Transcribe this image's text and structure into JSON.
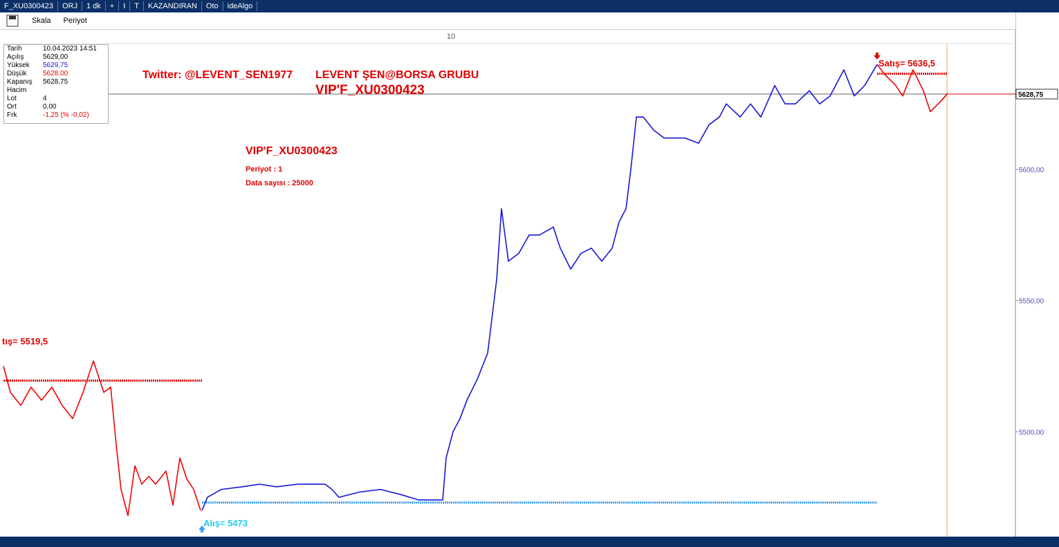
{
  "toolbar": {
    "items": [
      "F_XU0300423",
      "ORJ",
      "1 dk",
      "+",
      "I",
      "T",
      "KAZANDIRAN",
      "Oto",
      "ideAlgo"
    ]
  },
  "menu": {
    "items": [
      "Skala",
      "Periyot"
    ]
  },
  "info_panel": {
    "rows": [
      {
        "label": "Tarih",
        "value": "10.04.2023 14:51"
      },
      {
        "label": "Açılış",
        "value": "5629,00"
      },
      {
        "label": "Yüksek",
        "value": "5629,75",
        "color": "#1a1ad0"
      },
      {
        "label": "Düşük",
        "value": "5628,00",
        "color": "#e00000"
      },
      {
        "label": "Kapanış",
        "value": "5628,75"
      },
      {
        "label": "Hacim"
      },
      {
        "label": "Lot",
        "value": "4"
      },
      {
        "label": "Ort",
        "value": "0,00"
      },
      {
        "label": "Frk",
        "value": "-1,25 (% -0,02)",
        "color": "#e00000"
      }
    ]
  },
  "chart_data": {
    "type": "line",
    "annotations": [
      {
        "text": "Twitter: @LEVENT_SEN1977",
        "color": "#e00000"
      },
      {
        "text": "LEVENT ŞEN@BORSA GRUBU",
        "color": "#e00000"
      },
      {
        "text": "VIP'F_XU0300423",
        "color": "#e00000"
      },
      {
        "text": "VIP'F_XU0300423",
        "color": "#e00000"
      },
      {
        "text": "Periyot : 1",
        "color": "#e00000"
      },
      {
        "text": "Data sayısı : 25000",
        "color": "#e00000"
      }
    ],
    "xlim": [
      5,
      1468
    ],
    "xticks": [
      {
        "value": 647,
        "label": "10"
      }
    ],
    "ylim": [
      5460,
      5648
    ],
    "yticks": [
      {
        "value": 5500,
        "label": "5500,00"
      },
      {
        "value": 5550,
        "label": "5550,00"
      },
      {
        "value": 5600,
        "label": "5600,00"
      }
    ],
    "last": {
      "value": 5628.75,
      "label": "5628,75"
    },
    "series": [
      {
        "color": "#ee0000",
        "x": [
          5,
          15,
          30,
          45,
          60,
          75,
          90,
          105,
          120,
          135,
          150,
          160,
          168,
          175,
          185,
          195,
          205,
          215,
          225,
          240,
          250,
          260,
          270,
          280,
          290
        ],
        "values": [
          5525,
          5515,
          5510,
          5517,
          5512,
          5517,
          5510,
          5505,
          5515,
          5527,
          5515,
          5517,
          5495,
          5478,
          5468,
          5487,
          5480,
          5483,
          5480,
          5485,
          5472,
          5490,
          5482,
          5478,
          5470
        ]
      },
      {
        "color": "#1515d8",
        "x": [
          292,
          300,
          320,
          350,
          375,
          400,
          430,
          470,
          480,
          490,
          520,
          550,
          580,
          605,
          640,
          645,
          655,
          665,
          675,
          690,
          705,
          712,
          718,
          725,
          735,
          750,
          765,
          780,
          800,
          810,
          825,
          840,
          855,
          870,
          885,
          895,
          905,
          912,
          920,
          930,
          945,
          960,
          975,
          990,
          1010,
          1025,
          1040,
          1050,
          1070,
          1085,
          1100,
          1120,
          1135,
          1150,
          1170,
          1185,
          1200,
          1220,
          1235,
          1250,
          1268
        ],
        "values": [
          5470,
          5475,
          5478,
          5479,
          5480,
          5479,
          5480,
          5480,
          5478,
          5475,
          5477,
          5478,
          5476,
          5474,
          5474,
          5490,
          5500,
          5505,
          5512,
          5520,
          5530,
          5545,
          5558,
          5585,
          5565,
          5568,
          5575,
          5575,
          5578,
          5570,
          5562,
          5568,
          5570,
          5565,
          5570,
          5580,
          5585,
          5600,
          5620,
          5620,
          5615,
          5612,
          5612,
          5612,
          5610,
          5617,
          5620,
          5625,
          5620,
          5625,
          5620,
          5632,
          5625,
          5625,
          5630,
          5625,
          5628,
          5638,
          5628,
          5632,
          5640
        ]
      },
      {
        "color": "#ee0000",
        "x": [
          1268,
          1280,
          1295,
          1305,
          1320,
          1335,
          1345,
          1360,
          1370
        ],
        "values": [
          5640,
          5636,
          5632,
          5628,
          5638,
          5630,
          5622,
          5626,
          5629
        ]
      }
    ],
    "levels": [
      {
        "label": "tış= 5519,5",
        "value": 5519.5,
        "from": 5,
        "to": 292,
        "color": "#e00000",
        "line_color": "#e00000"
      },
      {
        "label": "Alış= 5473",
        "value": 5473,
        "from": 292,
        "to": 1268,
        "color": "#1ed0ee",
        "line_color": "#3a9ef0"
      },
      {
        "label": "Satış= 5636,5",
        "value": 5636.5,
        "from": 1268,
        "to": 1370,
        "color": "#e00000",
        "line_color": "#e00000"
      }
    ]
  }
}
